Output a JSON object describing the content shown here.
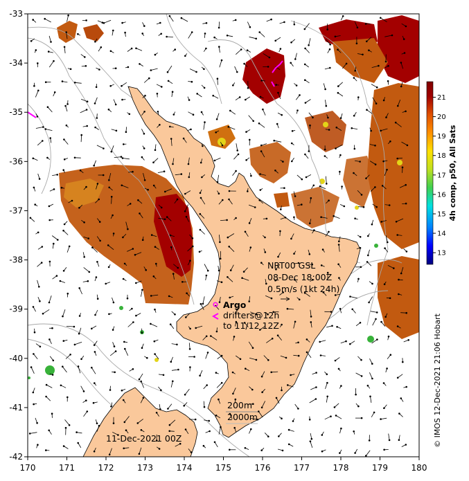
{
  "map": {
    "lon_ticks": [
      "170",
      "171",
      "172",
      "173",
      "174",
      "175",
      "176",
      "177",
      "178",
      "179",
      "180"
    ],
    "lat_ticks": [
      "-33",
      "-34",
      "-35",
      "-36",
      "-37",
      "-38",
      "-39",
      "-40",
      "-41",
      "-42"
    ],
    "lon_range": [
      170,
      180
    ],
    "lat_range": [
      -42,
      -33
    ],
    "colors": {
      "land": "#fac89b",
      "sst_hot": "#a00000",
      "sst_warm": "#c4580e",
      "sst_orange": "#d9820f",
      "sst_yellow": "#e3d418",
      "sst_green": "#38b23a",
      "contour": "#a8a8a8",
      "drifter": "#ff00ff"
    }
  },
  "annotations": {
    "nrt_title": "NRT00 GSL",
    "nrt_date": "08-Dec 18:00Z",
    "scale_text": "0.5m/s (1kt 24h)",
    "argo": "Argo",
    "drifters_line1": "drifters@12h",
    "drifters_line2": "to 11/12 12Z",
    "contour_200": "200m",
    "contour_2000": "2000m",
    "map_date": "11-Dec-2021 00Z"
  },
  "colorbar": {
    "title": "4h comp, p50, All Sats",
    "ticks": [
      "13",
      "14",
      "15",
      "16",
      "17",
      "18",
      "19",
      "20",
      "21"
    ],
    "range": [
      12.4,
      21.8
    ],
    "stops": [
      "#00007f",
      "#0000ff",
      "#0080ff",
      "#00e0e0",
      "#40d050",
      "#c0e020",
      "#ffe000",
      "#ff9000",
      "#e05000",
      "#a00000",
      "#800000"
    ]
  },
  "credit": "© IMOS 12-Dec-2021 21:06 Hobart"
}
